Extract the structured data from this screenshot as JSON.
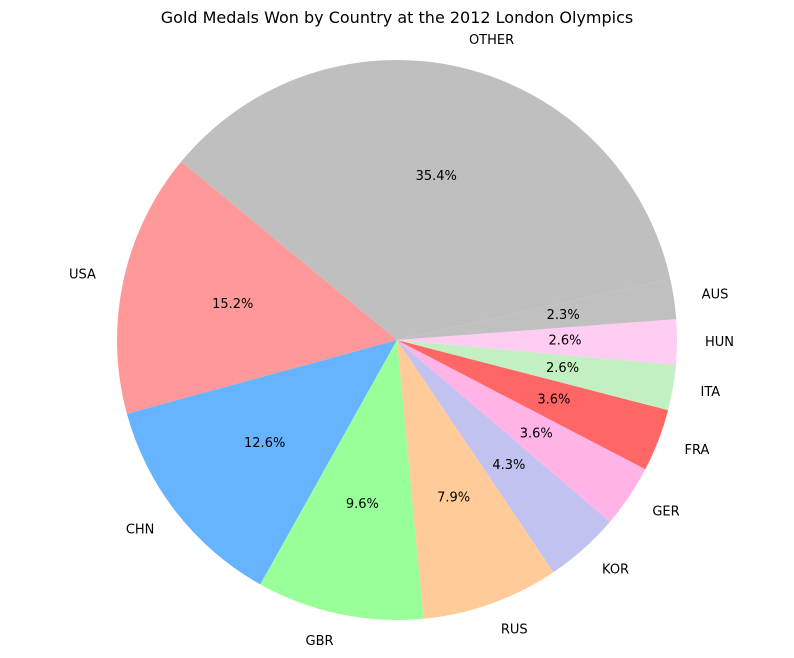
{
  "chart_data": {
    "type": "pie",
    "title": "Gold Medals Won by Country at the 2012 London Olympics",
    "start_angle_deg": 140.4,
    "direction": "counterclockwise",
    "slices": [
      {
        "label": "USA",
        "value": 15.2,
        "pct_label": "15.2%",
        "color": "#ff9999"
      },
      {
        "label": "CHN",
        "value": 12.6,
        "pct_label": "12.6%",
        "color": "#66b3ff"
      },
      {
        "label": "GBR",
        "value": 9.6,
        "pct_label": "9.6%",
        "color": "#99ff99"
      },
      {
        "label": "RUS",
        "value": 7.9,
        "pct_label": "7.9%",
        "color": "#ffcc99"
      },
      {
        "label": "KOR",
        "value": 4.3,
        "pct_label": "4.3%",
        "color": "#c2c2f0"
      },
      {
        "label": "GER",
        "value": 3.6,
        "pct_label": "3.6%",
        "color": "#ffb3e6"
      },
      {
        "label": "FRA",
        "value": 3.6,
        "pct_label": "3.6%",
        "color": "#ff6666"
      },
      {
        "label": "ITA",
        "value": 2.6,
        "pct_label": "2.6%",
        "color": "#c2f0c2"
      },
      {
        "label": "HUN",
        "value": 2.6,
        "pct_label": "2.6%",
        "color": "#ffccf2"
      },
      {
        "label": "AUS",
        "value": 2.3,
        "pct_label": "2.3%",
        "color": "#c0c0c0"
      },
      {
        "label": "OTHER",
        "value": 35.4,
        "pct_label": "35.4%",
        "color": "#bfbfbf"
      }
    ]
  }
}
